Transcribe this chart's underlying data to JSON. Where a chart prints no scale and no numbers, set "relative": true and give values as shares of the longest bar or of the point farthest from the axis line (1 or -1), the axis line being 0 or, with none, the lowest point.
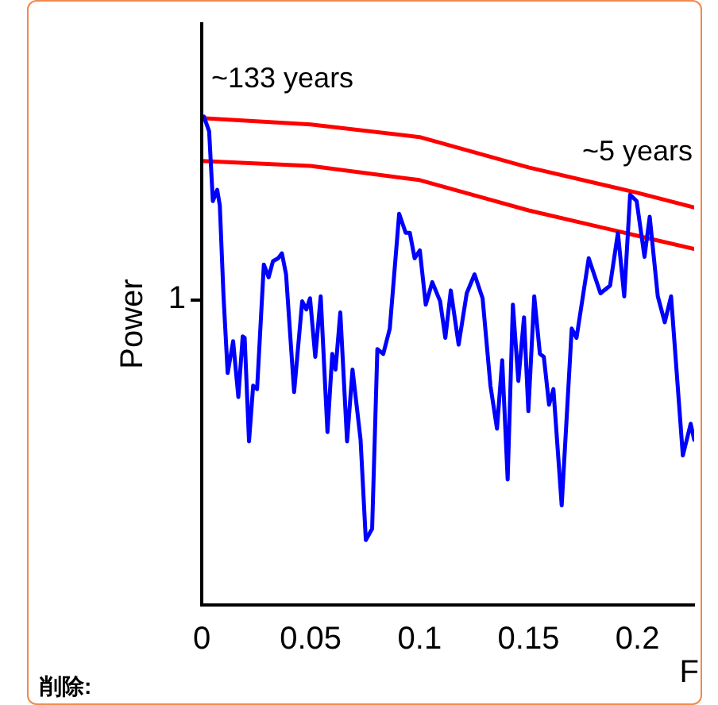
{
  "chart_data": {
    "type": "line",
    "relative": true,
    "xlabel": "F",
    "ylabel": "Power",
    "xlim": [
      0,
      0.226
    ],
    "xticks": [
      0,
      0.05,
      0.1,
      0.15,
      0.2
    ],
    "grid": false,
    "legend": false,
    "marker": "none",
    "line_style": "solid",
    "annotations": [
      "~133 years",
      "~5 years",
      "1",
      "削除:"
    ],
    "series": [
      {
        "color": "#0000ff",
        "x": [
          0.001,
          0.0034,
          0.0051,
          0.0071,
          0.0083,
          0.01,
          0.0119,
          0.0144,
          0.0168,
          0.0188,
          0.0197,
          0.0217,
          0.0236,
          0.0254,
          0.0285,
          0.0307,
          0.0327,
          0.0351,
          0.0368,
          0.0387,
          0.0424,
          0.0461,
          0.048,
          0.0497,
          0.0521,
          0.0546,
          0.0577,
          0.0599,
          0.0614,
          0.0636,
          0.0667,
          0.0692,
          0.0729,
          0.0753,
          0.0782,
          0.0806,
          0.0833,
          0.0863,
          0.0906,
          0.0936,
          0.0955,
          0.0977,
          0.1001,
          0.1028,
          0.1058,
          0.1094,
          0.1118,
          0.1143,
          0.1179,
          0.1216,
          0.1252,
          0.1289,
          0.1325,
          0.1355,
          0.1379,
          0.1404,
          0.1428,
          0.1453,
          0.1479,
          0.1499,
          0.1526,
          0.1552,
          0.157,
          0.1594,
          0.1614,
          0.1652,
          0.1698,
          0.172,
          0.1776,
          0.183,
          0.1874,
          0.191,
          0.1939,
          0.1966,
          0.1996,
          0.2032,
          0.2056,
          0.2093,
          0.2125,
          0.2154,
          0.2208,
          0.2244,
          0.226
        ],
        "values": [
          1.0,
          0.97,
          0.827,
          0.85,
          0.818,
          0.632,
          0.475,
          0.54,
          0.426,
          0.55,
          0.547,
          0.335,
          0.449,
          0.442,
          0.697,
          0.671,
          0.704,
          0.71,
          0.72,
          0.677,
          0.436,
          0.622,
          0.605,
          0.628,
          0.508,
          0.632,
          0.354,
          0.514,
          0.482,
          0.599,
          0.335,
          0.482,
          0.338,
          0.133,
          0.156,
          0.524,
          0.514,
          0.566,
          0.801,
          0.762,
          0.762,
          0.71,
          0.726,
          0.615,
          0.661,
          0.622,
          0.547,
          0.644,
          0.533,
          0.638,
          0.677,
          0.628,
          0.449,
          0.361,
          0.501,
          0.257,
          0.615,
          0.459,
          0.589,
          0.397,
          0.632,
          0.514,
          0.508,
          0.41,
          0.442,
          0.204,
          0.566,
          0.547,
          0.71,
          0.638,
          0.654,
          0.762,
          0.632,
          0.84,
          0.827,
          0.713,
          0.795,
          0.632,
          0.579,
          0.632,
          0.306,
          0.371,
          0.338
        ]
      },
      {
        "color": "#ff0000",
        "x": [
          0,
          0.05,
          0.1,
          0.15,
          0.2,
          0.226
        ],
        "values": [
          0.997,
          0.984,
          0.958,
          0.896,
          0.844,
          0.814
        ]
      },
      {
        "color": "#ff0000",
        "x": [
          0,
          0.05,
          0.1,
          0.15,
          0.2,
          0.226
        ],
        "values": [
          0.909,
          0.899,
          0.87,
          0.808,
          0.756,
          0.729
        ]
      }
    ]
  }
}
